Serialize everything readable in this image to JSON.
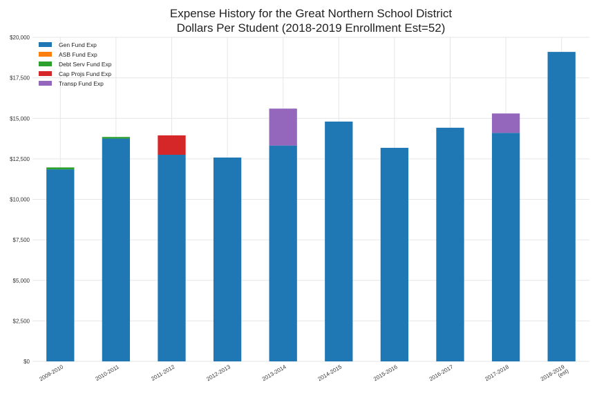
{
  "chart_data": {
    "type": "bar",
    "stacked": true,
    "title": [
      "Expense History for the Great Northern School District",
      "Dollars Per Student (2018-2019 Enrollment Est=52)"
    ],
    "xlabel": "",
    "ylabel": "",
    "categories": [
      "2009-2010",
      "2010-2011",
      "2011-2012",
      "2012-2013",
      "2013-2014",
      "2014-2015",
      "2015-2016",
      "2016-2017",
      "2017-2018",
      "2018-2019\n(est)"
    ],
    "series": [
      {
        "name": "Gen Fund Exp",
        "color": "#1f77b4",
        "values": [
          11850,
          13750,
          12750,
          12580,
          13320,
          14800,
          13180,
          14420,
          14100,
          19100
        ]
      },
      {
        "name": "ASB Fund Exp",
        "color": "#ff7f0e",
        "values": [
          0,
          0,
          0,
          0,
          0,
          0,
          0,
          0,
          0,
          0
        ]
      },
      {
        "name": "Debt Serv Fund Exp",
        "color": "#2ca02c",
        "values": [
          120,
          100,
          0,
          0,
          0,
          0,
          0,
          0,
          0,
          0
        ]
      },
      {
        "name": "Cap Projs Fund Exp",
        "color": "#d62728",
        "values": [
          0,
          0,
          1200,
          0,
          0,
          0,
          0,
          0,
          0,
          0
        ]
      },
      {
        "name": "Transp Fund Exp",
        "color": "#9467bd",
        "values": [
          0,
          0,
          0,
          0,
          2280,
          0,
          0,
          0,
          1200,
          0
        ]
      }
    ],
    "ylim": [
      0,
      20000
    ],
    "yticks": [
      0,
      2500,
      5000,
      7500,
      10000,
      12500,
      15000,
      17500,
      20000
    ],
    "ytick_labels": [
      "$0",
      "$2,500",
      "$5,000",
      "$7,500",
      "$10,000",
      "$12,500",
      "$15,000",
      "$17,500",
      "$20,000"
    ],
    "grid": true,
    "legend_position": "top-left"
  }
}
